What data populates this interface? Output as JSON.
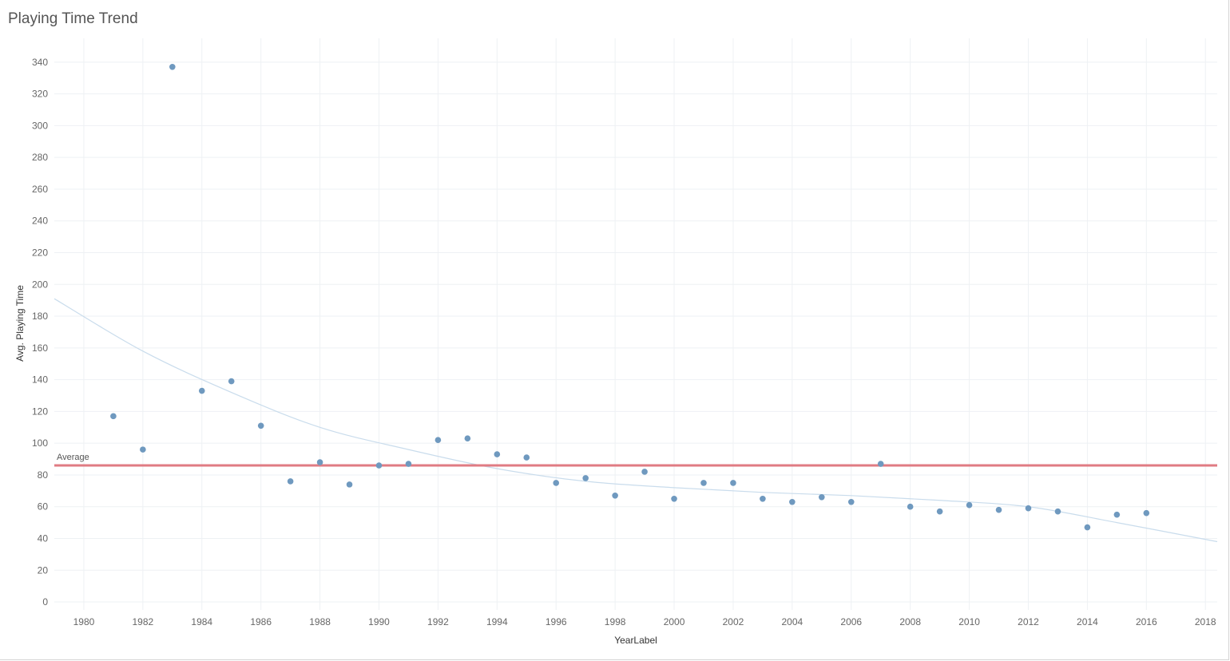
{
  "title": "Playing Time Trend",
  "chart_data": {
    "type": "scatter",
    "title": "Playing Time Trend",
    "xlabel": "YearLabel",
    "ylabel": "Avg. Playing Time",
    "xlim": [
      1979,
      2018.4
    ],
    "ylim": [
      -5,
      355
    ],
    "x_ticks": [
      1980,
      1982,
      1984,
      1986,
      1988,
      1990,
      1992,
      1994,
      1996,
      1998,
      2000,
      2002,
      2004,
      2006,
      2008,
      2010,
      2012,
      2014,
      2016,
      2018
    ],
    "y_ticks": [
      0,
      20,
      40,
      60,
      80,
      100,
      120,
      140,
      160,
      180,
      200,
      220,
      240,
      260,
      280,
      300,
      320,
      340
    ],
    "grid": true,
    "point_color": "#6f99bf",
    "points": [
      {
        "x": 1981,
        "y": 117
      },
      {
        "x": 1982,
        "y": 96
      },
      {
        "x": 1983,
        "y": 337
      },
      {
        "x": 1984,
        "y": 133
      },
      {
        "x": 1985,
        "y": 139
      },
      {
        "x": 1986,
        "y": 111
      },
      {
        "x": 1987,
        "y": 76
      },
      {
        "x": 1988,
        "y": 88
      },
      {
        "x": 1989,
        "y": 74
      },
      {
        "x": 1990,
        "y": 86
      },
      {
        "x": 1991,
        "y": 87
      },
      {
        "x": 1992,
        "y": 102
      },
      {
        "x": 1993,
        "y": 103
      },
      {
        "x": 1994,
        "y": 93
      },
      {
        "x": 1995,
        "y": 91
      },
      {
        "x": 1996,
        "y": 75
      },
      {
        "x": 1997,
        "y": 78
      },
      {
        "x": 1998,
        "y": 67
      },
      {
        "x": 1999,
        "y": 82
      },
      {
        "x": 2000,
        "y": 65
      },
      {
        "x": 2001,
        "y": 75
      },
      {
        "x": 2002,
        "y": 75
      },
      {
        "x": 2003,
        "y": 65
      },
      {
        "x": 2004,
        "y": 63
      },
      {
        "x": 2005,
        "y": 66
      },
      {
        "x": 2006,
        "y": 63
      },
      {
        "x": 2007,
        "y": 87
      },
      {
        "x": 2008,
        "y": 60
      },
      {
        "x": 2009,
        "y": 57
      },
      {
        "x": 2010,
        "y": 61
      },
      {
        "x": 2011,
        "y": 58
      },
      {
        "x": 2012,
        "y": 59
      },
      {
        "x": 2013,
        "y": 57
      },
      {
        "x": 2014,
        "y": 47
      },
      {
        "x": 2015,
        "y": 55
      },
      {
        "x": 2016,
        "y": 56
      }
    ],
    "reference_line": {
      "label": "Average",
      "value": 86,
      "color": "#e07b83"
    },
    "trend_line": {
      "color": "#c9dcec",
      "points": [
        {
          "x": 1979,
          "y": 191
        },
        {
          "x": 1982,
          "y": 158
        },
        {
          "x": 1985,
          "y": 132
        },
        {
          "x": 1988,
          "y": 110
        },
        {
          "x": 1991,
          "y": 96
        },
        {
          "x": 1994,
          "y": 84
        },
        {
          "x": 1997,
          "y": 76
        },
        {
          "x": 2000,
          "y": 72
        },
        {
          "x": 2003,
          "y": 69
        },
        {
          "x": 2006,
          "y": 67
        },
        {
          "x": 2009,
          "y": 64
        },
        {
          "x": 2012,
          "y": 60
        },
        {
          "x": 2015,
          "y": 50
        },
        {
          "x": 2018.4,
          "y": 38
        }
      ]
    }
  }
}
